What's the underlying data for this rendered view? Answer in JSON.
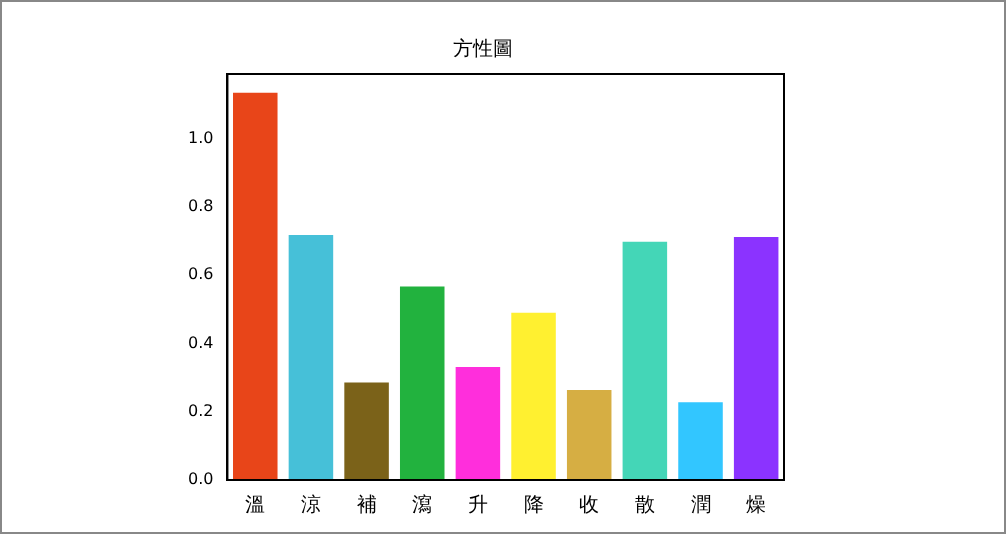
{
  "chart_data": {
    "type": "bar",
    "title": "方性圖",
    "categories": [
      "溫",
      "涼",
      "補",
      "瀉",
      "升",
      "降",
      "收",
      "散",
      "潤",
      "燥"
    ],
    "values": [
      1.135,
      0.718,
      0.286,
      0.567,
      0.331,
      0.49,
      0.264,
      0.698,
      0.228,
      0.712
    ],
    "colors": [
      "#e84519",
      "#46c0d8",
      "#7b6219",
      "#22b23e",
      "#ff2edc",
      "#fff030",
      "#d6ae43",
      "#44d6b7",
      "#32c6ff",
      "#8b33ff"
    ],
    "ylim": [
      0,
      1.19
    ],
    "yticks": [
      {
        "value": 0,
        "label": "0.0"
      },
      0.2,
      0.4,
      0.6,
      0.8,
      {
        "value": 1,
        "label": "1.0"
      }
    ],
    "grid": false,
    "legend": false
  }
}
